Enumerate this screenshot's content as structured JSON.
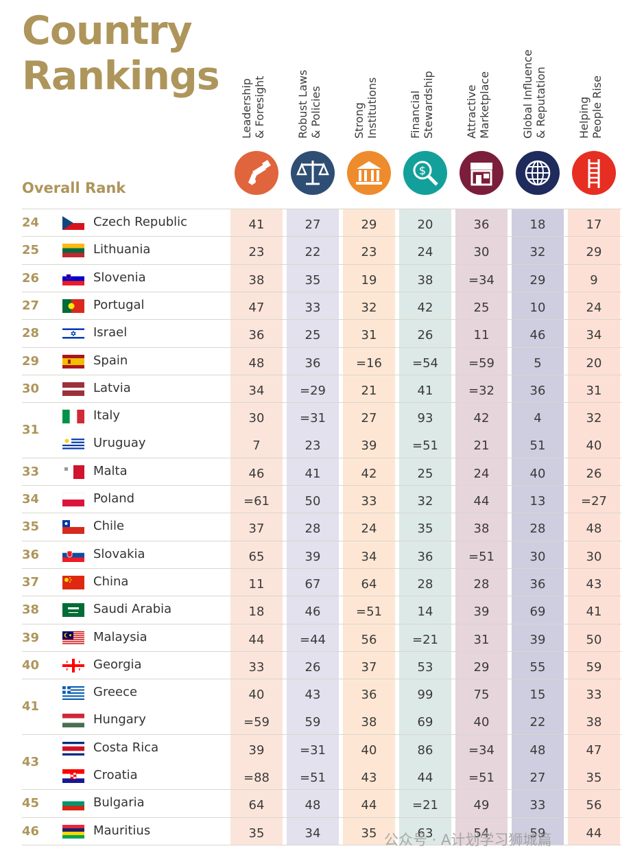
{
  "title": {
    "line1": "Country",
    "line2": "Rankings"
  },
  "overall_rank_label": "Overall Rank",
  "columns": [
    {
      "label1": "Leadership",
      "label2": "& Foresight",
      "icon": "telescope-icon",
      "bg": "#fbe5da",
      "icon_color": "#e0653c"
    },
    {
      "label1": "Robust Laws",
      "label2": "& Policies",
      "icon": "scales-icon",
      "bg": "#e2e1ed",
      "icon_color": "#2f4e73"
    },
    {
      "label1": "Strong",
      "label2": "Institutions",
      "icon": "building-icon",
      "bg": "#fde7d4",
      "icon_color": "#ee8b2c"
    },
    {
      "label1": "Financial",
      "label2": "Stewardship",
      "icon": "money-magnifier-icon",
      "bg": "#dde9e6",
      "icon_color": "#14a09a"
    },
    {
      "label1": "Attractive",
      "label2": "Marketplace",
      "icon": "storefront-icon",
      "bg": "#e6d5db",
      "icon_color": "#7b1e3b"
    },
    {
      "label1": "Global Influence",
      "label2": "& Reputation",
      "icon": "globe-icon",
      "bg": "#cfcde0",
      "icon_color": "#1e2b5c"
    },
    {
      "label1": "Helping",
      "label2": "People Rise",
      "icon": "ladder-icon",
      "bg": "#fde0d5",
      "icon_color": "#e62e22"
    }
  ],
  "rows": [
    {
      "rank": "24",
      "country": "Czech Republic",
      "flag": "cz",
      "values": [
        "41",
        "27",
        "29",
        "20",
        "36",
        "18",
        "17"
      ]
    },
    {
      "rank": "25",
      "country": "Lithuania",
      "flag": "lt",
      "values": [
        "23",
        "22",
        "23",
        "24",
        "30",
        "32",
        "29"
      ]
    },
    {
      "rank": "26",
      "country": "Slovenia",
      "flag": "si",
      "values": [
        "38",
        "35",
        "19",
        "38",
        "=34",
        "29",
        "9"
      ]
    },
    {
      "rank": "27",
      "country": "Portugal",
      "flag": "pt",
      "values": [
        "47",
        "33",
        "32",
        "42",
        "25",
        "10",
        "24"
      ]
    },
    {
      "rank": "28",
      "country": "Israel",
      "flag": "il",
      "values": [
        "36",
        "25",
        "31",
        "26",
        "11",
        "46",
        "34"
      ]
    },
    {
      "rank": "29",
      "country": "Spain",
      "flag": "es",
      "values": [
        "48",
        "36",
        "=16",
        "=54",
        "=59",
        "5",
        "20"
      ]
    },
    {
      "rank": "30",
      "country": "Latvia",
      "flag": "lv",
      "values": [
        "34",
        "=29",
        "21",
        "41",
        "=32",
        "36",
        "31"
      ]
    },
    {
      "rank": "31",
      "country": "Italy",
      "flag": "it",
      "values": [
        "30",
        "=31",
        "27",
        "93",
        "42",
        "4",
        "32"
      ]
    },
    {
      "rank": "",
      "country": "Uruguay",
      "flag": "uy",
      "values": [
        "7",
        "23",
        "39",
        "=51",
        "21",
        "51",
        "40"
      ]
    },
    {
      "rank": "33",
      "country": "Malta",
      "flag": "mt",
      "values": [
        "46",
        "41",
        "42",
        "25",
        "24",
        "40",
        "26"
      ]
    },
    {
      "rank": "34",
      "country": "Poland",
      "flag": "pl",
      "values": [
        "=61",
        "50",
        "33",
        "32",
        "44",
        "13",
        "=27"
      ]
    },
    {
      "rank": "35",
      "country": "Chile",
      "flag": "cl",
      "values": [
        "37",
        "28",
        "24",
        "35",
        "38",
        "28",
        "48"
      ]
    },
    {
      "rank": "36",
      "country": "Slovakia",
      "flag": "sk",
      "values": [
        "65",
        "39",
        "34",
        "36",
        "=51",
        "30",
        "30"
      ]
    },
    {
      "rank": "37",
      "country": "China",
      "flag": "cn",
      "values": [
        "11",
        "67",
        "64",
        "28",
        "28",
        "36",
        "43"
      ]
    },
    {
      "rank": "38",
      "country": "Saudi Arabia",
      "flag": "sa",
      "values": [
        "18",
        "46",
        "=51",
        "14",
        "39",
        "69",
        "41"
      ]
    },
    {
      "rank": "39",
      "country": "Malaysia",
      "flag": "my",
      "values": [
        "44",
        "=44",
        "56",
        "=21",
        "31",
        "39",
        "50"
      ]
    },
    {
      "rank": "40",
      "country": "Georgia",
      "flag": "ge",
      "values": [
        "33",
        "26",
        "37",
        "53",
        "29",
        "55",
        "59"
      ]
    },
    {
      "rank": "41",
      "country": "Greece",
      "flag": "gr",
      "values": [
        "40",
        "43",
        "36",
        "99",
        "75",
        "15",
        "33"
      ]
    },
    {
      "rank": "",
      "country": "Hungary",
      "flag": "hu",
      "values": [
        "=59",
        "59",
        "38",
        "69",
        "40",
        "22",
        "38"
      ]
    },
    {
      "rank": "43",
      "country": "Costa Rica",
      "flag": "cr",
      "values": [
        "39",
        "=31",
        "40",
        "86",
        "=34",
        "48",
        "47"
      ]
    },
    {
      "rank": "",
      "country": "Croatia",
      "flag": "hr",
      "values": [
        "=88",
        "=51",
        "43",
        "44",
        "=51",
        "27",
        "35"
      ]
    },
    {
      "rank": "45",
      "country": "Bulgaria",
      "flag": "bg",
      "values": [
        "64",
        "48",
        "44",
        "=21",
        "49",
        "33",
        "56"
      ]
    },
    {
      "rank": "46",
      "country": "Mauritius",
      "flag": "mu",
      "values": [
        "35",
        "34",
        "35",
        "63",
        "54",
        "59",
        "44"
      ]
    }
  ],
  "watermark": "公众号 · A计划学习狮城篇"
}
